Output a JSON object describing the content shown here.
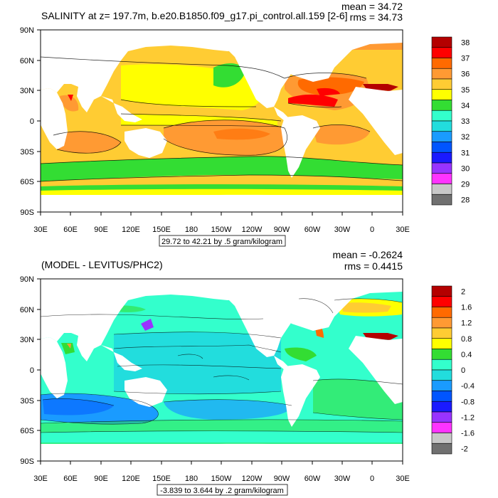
{
  "figure_1": {
    "title": "SALINITY at z= 197.7m, b.e20.B1850.f09_g17.pi_control.all.159 [2-6]",
    "stats": {
      "mean": "mean = 34.72",
      "rms": "rms = 34.73"
    },
    "range_caption": "29.72 to 42.21 by .5 gram/kilogram",
    "colorbar": {
      "labels": [
        "38",
        "37",
        "36",
        "35",
        "34",
        "33",
        "32",
        "31",
        "30",
        "29",
        "28"
      ],
      "colors": [
        "#b40000",
        "#ff0000",
        "#ff6a00",
        "#ff9a33",
        "#ffcc33",
        "#ffff00",
        "#33dd33",
        "#33ffcc",
        "#22dddd",
        "#1a9bff",
        "#0055ff",
        "#1a1aff",
        "#9933ff",
        "#ff33ff",
        "#c8c8c8",
        "#707070"
      ]
    }
  },
  "figure_2": {
    "title": "(MODEL - LEVITUS/PHC2)",
    "stats": {
      "mean": "mean = -0.2624",
      "rms": "rms = 0.4415"
    },
    "range_caption": "-3.839 to 3.644 by .2 gram/kilogram",
    "colorbar": {
      "labels": [
        "2",
        "1.6",
        "1.2",
        "0.8",
        "0.4",
        "0",
        "-0.4",
        "-0.8",
        "-1.2",
        "-1.6",
        "-2"
      ],
      "colors": [
        "#b40000",
        "#ff0000",
        "#ff6a00",
        "#ff9a33",
        "#ffcc33",
        "#ffff00",
        "#33dd33",
        "#33ffcc",
        "#22dddd",
        "#1a9bff",
        "#0055ff",
        "#1a1aff",
        "#9933ff",
        "#ff33ff",
        "#c8c8c8",
        "#707070"
      ]
    }
  },
  "axes": {
    "lat_ticks": [
      "90N",
      "60N",
      "30N",
      "0",
      "30S",
      "60S",
      "90S"
    ],
    "lon_ticks": [
      "30E",
      "60E",
      "90E",
      "120E",
      "150E",
      "180",
      "150W",
      "120W",
      "90W",
      "60W",
      "30W",
      "0",
      "30E"
    ]
  },
  "chart_data": [
    {
      "type": "heatmap",
      "title": "SALINITY at z= 197.7m, b.e20.B1850.f09_g17.pi_control.all.159 [2-6]",
      "xlabel": "",
      "ylabel": "",
      "xlim": [
        30,
        390
      ],
      "ylim": [
        -90,
        90
      ],
      "color_levels": [
        28,
        29,
        30,
        31,
        32,
        33,
        34,
        35,
        36,
        37,
        38
      ],
      "mean": 34.72,
      "rms": 34.73,
      "min": 29.72,
      "max": 42.21,
      "interval": 0.5,
      "units": "gram/kilogram"
    },
    {
      "type": "heatmap",
      "title": "(MODEL - LEVITUS/PHC2)",
      "xlabel": "",
      "ylabel": "",
      "xlim": [
        30,
        390
      ],
      "ylim": [
        -90,
        90
      ],
      "color_levels": [
        -2,
        -1.6,
        -1.2,
        -0.8,
        -0.4,
        0,
        0.4,
        0.8,
        1.2,
        1.6,
        2
      ],
      "mean": -0.2624,
      "rms": 0.4415,
      "min": -3.839,
      "max": 3.644,
      "interval": 0.2,
      "units": "gram/kilogram"
    }
  ]
}
